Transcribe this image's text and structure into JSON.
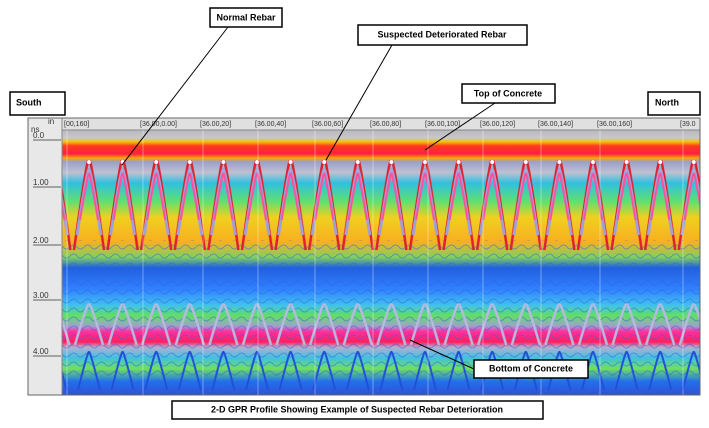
{
  "callouts": {
    "normal_rebar": "Normal Rebar",
    "suspected": "Suspected Deteriorated Rebar",
    "top": "Top of Concrete",
    "bottom": "Bottom of Concrete"
  },
  "directions": {
    "left": "South",
    "right": "North"
  },
  "axis": {
    "unit_top": "in",
    "unit_bottom": "ns",
    "ticks": [
      "0.0",
      "1.00",
      "2.00",
      "3.00",
      "4.00"
    ]
  },
  "stations": [
    "[00,160]",
    "[36.00,0.00]",
    "[36.00,20]",
    "[36.00,40]",
    "[36.00,60]",
    "[36.00,80]",
    "[36.00,100]",
    "[36.00,120]",
    "[36.00,140]",
    "[36.00,160]",
    "[39.0"
  ],
  "caption": "2-D GPR Profile Showing Example of Suspected Rebar Deterioration"
}
